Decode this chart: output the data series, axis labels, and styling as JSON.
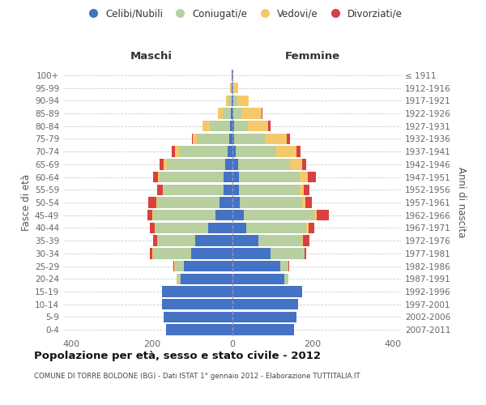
{
  "age_groups": [
    "0-4",
    "5-9",
    "10-14",
    "15-19",
    "20-24",
    "25-29",
    "30-34",
    "35-39",
    "40-44",
    "45-49",
    "50-54",
    "55-59",
    "60-64",
    "65-69",
    "70-74",
    "75-79",
    "80-84",
    "85-89",
    "90-94",
    "95-99",
    "100+"
  ],
  "birth_years": [
    "2007-2011",
    "2002-2006",
    "1997-2001",
    "1992-1996",
    "1987-1991",
    "1982-1986",
    "1977-1981",
    "1972-1976",
    "1967-1971",
    "1962-1966",
    "1957-1961",
    "1952-1956",
    "1947-1951",
    "1942-1946",
    "1937-1941",
    "1932-1936",
    "1927-1931",
    "1922-1926",
    "1917-1921",
    "1912-1916",
    "≤ 1911"
  ],
  "male_celibi": [
    165,
    170,
    175,
    175,
    128,
    120,
    102,
    92,
    60,
    42,
    32,
    22,
    22,
    18,
    12,
    8,
    6,
    4,
    2,
    1,
    1
  ],
  "male_coniugati": [
    0,
    0,
    0,
    0,
    8,
    22,
    95,
    95,
    130,
    155,
    155,
    148,
    158,
    145,
    120,
    80,
    50,
    20,
    8,
    2,
    0
  ],
  "male_vedovi": [
    0,
    0,
    0,
    0,
    2,
    2,
    2,
    0,
    2,
    2,
    2,
    2,
    5,
    8,
    10,
    10,
    18,
    12,
    5,
    2,
    0
  ],
  "male_divorziati": [
    0,
    0,
    0,
    0,
    0,
    2,
    5,
    10,
    12,
    12,
    20,
    15,
    12,
    10,
    8,
    2,
    0,
    0,
    0,
    0,
    0
  ],
  "fem_nubili": [
    155,
    160,
    165,
    175,
    130,
    120,
    95,
    65,
    35,
    30,
    20,
    18,
    18,
    15,
    10,
    6,
    5,
    4,
    3,
    2,
    1
  ],
  "fem_coniugate": [
    0,
    0,
    0,
    0,
    10,
    20,
    85,
    110,
    150,
    175,
    155,
    150,
    150,
    130,
    100,
    75,
    35,
    20,
    10,
    2,
    0
  ],
  "fem_vedove": [
    0,
    0,
    0,
    0,
    0,
    0,
    0,
    2,
    5,
    5,
    8,
    10,
    20,
    30,
    50,
    55,
    50,
    50,
    28,
    12,
    2
  ],
  "fem_divorziate": [
    0,
    0,
    0,
    0,
    0,
    2,
    5,
    15,
    15,
    30,
    15,
    15,
    20,
    10,
    10,
    8,
    5,
    2,
    0,
    0,
    0
  ],
  "color_celibi": "#4472c4",
  "color_coniugati": "#b8cfa0",
  "color_vedovi": "#f5c96b",
  "color_divorziati": "#d94040",
  "title": "Popolazione per età, sesso e stato civile - 2012",
  "subtitle": "COMUNE DI TORRE BOLDONE (BG) - Dati ISTAT 1° gennaio 2012 - Elaborazione TUTTITALIA.IT",
  "label_maschi": "Maschi",
  "label_femmine": "Femmine",
  "label_fasce": "Fasce di età",
  "label_anni": "Anni di nascita",
  "legend_labels": [
    "Celibi/Nubili",
    "Coniugati/e",
    "Vedovi/e",
    "Divorziati/e"
  ],
  "xlim": 420,
  "bg_color": "#ffffff",
  "grid_color": "#cccccc"
}
